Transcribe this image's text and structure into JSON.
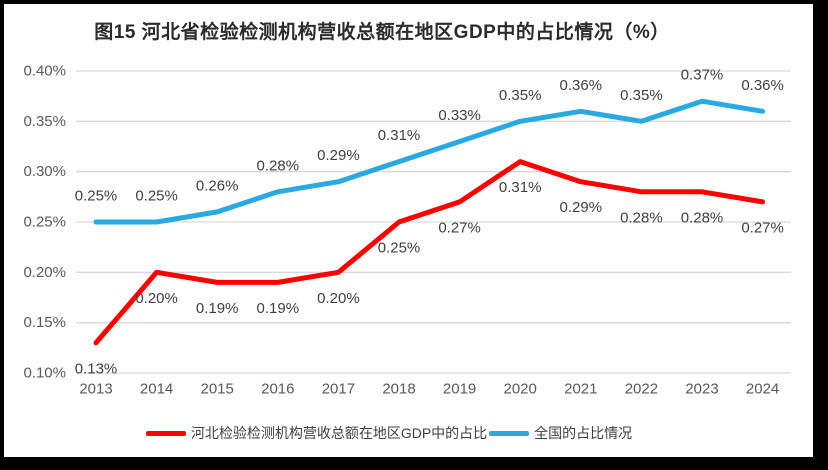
{
  "window": {
    "frame_color": "#000000",
    "background_color": "#ffffff"
  },
  "chart_data": {
    "type": "line",
    "title": "图15 河北省检验检测机构营收总额在地区GDP中的占比情况（%）",
    "categories": [
      "2013",
      "2014",
      "2015",
      "2016",
      "2017",
      "2018",
      "2019",
      "2020",
      "2021",
      "2022",
      "2023",
      "2024"
    ],
    "series": [
      {
        "name": "河北检验检测机构营收总额在地区GDP中的占比",
        "color": "#FF0000",
        "values": [
          0.13,
          0.2,
          0.19,
          0.19,
          0.2,
          0.25,
          0.27,
          0.31,
          0.29,
          0.28,
          0.28,
          0.27
        ],
        "labels": [
          "0.13%",
          "0.20%",
          "0.19%",
          "0.19%",
          "0.20%",
          "0.25%",
          "0.27%",
          "0.31%",
          "0.29%",
          "0.28%",
          "0.28%",
          "0.27%"
        ],
        "label_position": "below"
      },
      {
        "name": "全国的占比情况",
        "color": "#29A9E1",
        "values": [
          0.25,
          0.25,
          0.26,
          0.28,
          0.29,
          0.31,
          0.33,
          0.35,
          0.36,
          0.35,
          0.37,
          0.36
        ],
        "labels": [
          "0.25%",
          "0.25%",
          "0.26%",
          "0.28%",
          "0.29%",
          "0.31%",
          "0.33%",
          "0.35%",
          "0.36%",
          "0.35%",
          "0.37%",
          "0.36%"
        ],
        "label_position": "above"
      }
    ],
    "y_axis": {
      "ticks": [
        "0.40%",
        "0.35%",
        "0.30%",
        "0.25%",
        "0.20%",
        "0.15%",
        "0.10%"
      ],
      "max": 0.4,
      "min": 0.1,
      "step": 0.05
    },
    "grid": true,
    "legend_position": "bottom",
    "colors": {
      "gridline": "#D9D9D9",
      "axis_text": "#595959",
      "data_label_text": "#404040",
      "title_text": "#2B2B2B"
    }
  }
}
